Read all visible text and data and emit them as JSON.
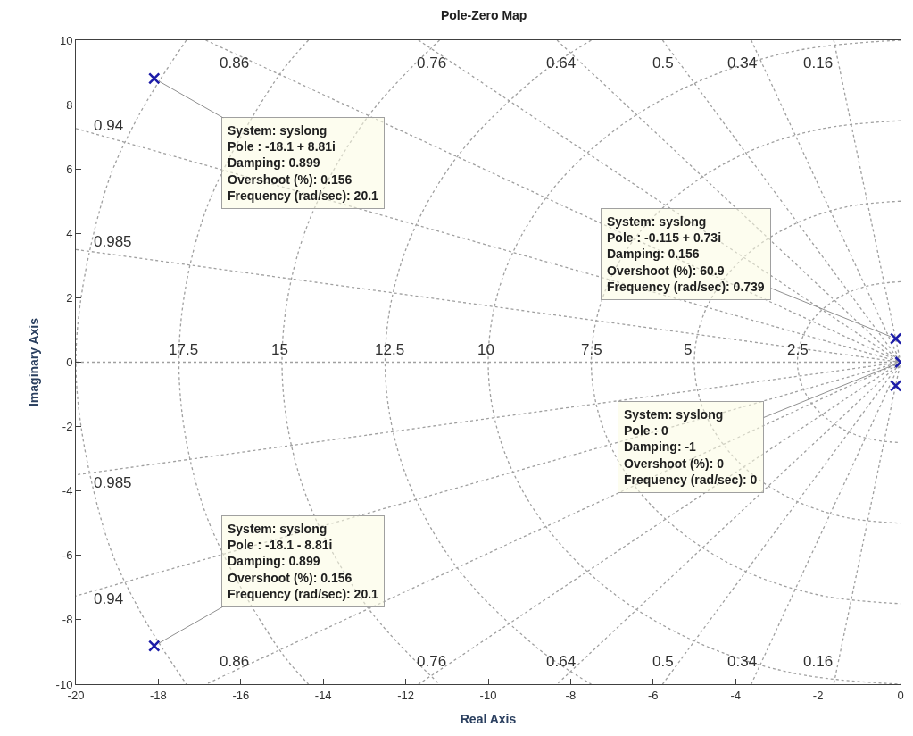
{
  "chart_data": {
    "type": "scatter",
    "title": "Pole-Zero Map",
    "xlabel": "Real Axis",
    "ylabel": "Imaginary Axis",
    "xlim": [
      -20,
      0
    ],
    "xticks": [
      -20,
      -18,
      -16,
      -14,
      -12,
      -10,
      -8,
      -6,
      -4,
      -2,
      0
    ],
    "ylim": [
      -10,
      10
    ],
    "yticks": [
      -10,
      -8,
      -6,
      -4,
      -2,
      0,
      2,
      4,
      6,
      8,
      10
    ],
    "marker": "cross",
    "series": [
      {
        "color": "#1c1ca8",
        "x": [
          -18.1,
          -18.1,
          -0.115,
          -0.115,
          0
        ],
        "values": [
          8.81,
          -8.81,
          0.73,
          -0.73,
          0
        ]
      },
      {
        "type": "line",
        "color": "#a0a0a0",
        "line_style": "dotted",
        "marker": "none",
        "x": [
          -20,
          0
        ],
        "values": [
          0,
          0
        ]
      },
      {
        "type": "line",
        "color": "#a0a0a0",
        "line_style": "dotted",
        "marker": "none",
        "x": [
          -1.62,
          0,
          -1.62
        ],
        "values": [
          10,
          0,
          -10
        ]
      },
      {
        "type": "line",
        "color": "#a0a0a0",
        "line_style": "dotted",
        "marker": "none",
        "x": [
          -3.62,
          0,
          -3.62
        ],
        "values": [
          10,
          0,
          -10
        ]
      },
      {
        "type": "line",
        "color": "#a0a0a0",
        "line_style": "dotted",
        "marker": "none",
        "x": [
          -5.77,
          0,
          -5.77
        ],
        "values": [
          10,
          0,
          -10
        ]
      },
      {
        "type": "line",
        "color": "#a0a0a0",
        "line_style": "dotted",
        "marker": "none",
        "x": [
          -8.33,
          0,
          -8.33
        ],
        "values": [
          10,
          0,
          -10
        ]
      },
      {
        "type": "line",
        "color": "#a0a0a0",
        "line_style": "dotted",
        "marker": "none",
        "x": [
          -11.69,
          0,
          -11.69
        ],
        "values": [
          10,
          0,
          -10
        ]
      },
      {
        "type": "line",
        "color": "#a0a0a0",
        "line_style": "dotted",
        "marker": "none",
        "x": [
          -16.85,
          0,
          -16.85
        ],
        "values": [
          10,
          0,
          -10
        ]
      },
      {
        "type": "line",
        "color": "#a0a0a0",
        "line_style": "dotted",
        "marker": "none",
        "x": [
          -20,
          0,
          -20
        ],
        "values": [
          7.26,
          0,
          -7.26
        ]
      },
      {
        "type": "line",
        "color": "#a0a0a0",
        "line_style": "dotted",
        "marker": "none",
        "x": [
          -20,
          0,
          -20
        ],
        "values": [
          3.5,
          0,
          -3.5
        ]
      },
      {
        "type": "line",
        "color": "#a0a0a0",
        "line_style": "dotted",
        "marker": "none",
        "x": [
          0,
          -0.65,
          -1.25,
          -1.77,
          -2.17,
          -2.41,
          -2.5,
          -2.41,
          -2.17,
          -1.77,
          -1.25,
          -0.65,
          0
        ],
        "values": [
          2.5,
          2.41,
          2.17,
          1.77,
          1.25,
          0.65,
          0,
          -0.65,
          -1.25,
          -1.77,
          -2.17,
          -2.41,
          -2.5
        ]
      },
      {
        "type": "line",
        "color": "#a0a0a0",
        "line_style": "dotted",
        "marker": "none",
        "x": [
          0,
          -1.29,
          -2.5,
          -3.54,
          -4.33,
          -4.83,
          -5,
          -4.83,
          -4.33,
          -3.54,
          -2.5,
          -1.29,
          0
        ],
        "values": [
          5,
          4.83,
          4.33,
          3.54,
          2.5,
          1.29,
          0,
          -1.29,
          -2.5,
          -3.54,
          -4.33,
          -4.83,
          -5
        ]
      },
      {
        "type": "line",
        "color": "#a0a0a0",
        "line_style": "dotted",
        "marker": "none",
        "x": [
          0,
          -1.94,
          -3.75,
          -5.3,
          -6.5,
          -7.24,
          -7.5,
          -7.24,
          -6.5,
          -5.3,
          -3.75,
          -1.94,
          0
        ],
        "values": [
          7.5,
          7.24,
          6.5,
          5.3,
          3.75,
          1.94,
          0,
          -1.94,
          -3.75,
          -5.3,
          -6.5,
          -7.24,
          -7.5
        ]
      },
      {
        "type": "line",
        "color": "#a0a0a0",
        "line_style": "dotted",
        "marker": "none",
        "x": [
          0,
          -2.59,
          -5,
          -7.07,
          -8.66,
          -9.66,
          -10,
          -9.66,
          -8.66,
          -7.07,
          -5,
          -2.59,
          0
        ],
        "values": [
          10,
          9.66,
          8.66,
          7.07,
          5,
          2.59,
          0,
          -2.59,
          -5,
          -7.07,
          -8.66,
          -9.66,
          -10
        ]
      },
      {
        "type": "line",
        "color": "#a0a0a0",
        "line_style": "dotted",
        "marker": "none",
        "x": [
          -7.5,
          -8.84,
          -10.83,
          -12.07,
          -12.5,
          -12.07,
          -10.83,
          -8.84,
          -7.5
        ],
        "values": [
          10,
          8.84,
          6.25,
          3.24,
          0,
          -3.24,
          -6.25,
          -8.84,
          -10
        ]
      },
      {
        "type": "line",
        "color": "#a0a0a0",
        "line_style": "dotted",
        "marker": "none",
        "x": [
          -11.18,
          -12.99,
          -14.49,
          -15,
          -14.49,
          -12.99,
          -11.18
        ],
        "values": [
          10,
          7.5,
          3.88,
          0,
          -3.88,
          -7.5,
          -10
        ]
      },
      {
        "type": "line",
        "color": "#a0a0a0",
        "line_style": "dotted",
        "marker": "none",
        "x": [
          -14.36,
          -15.16,
          -16.9,
          -17.5,
          -16.9,
          -15.16,
          -14.36
        ],
        "values": [
          10,
          8.75,
          4.53,
          0,
          -4.53,
          -8.75,
          -10
        ]
      },
      {
        "type": "line",
        "color": "#a0a0a0",
        "line_style": "dotted",
        "marker": "none",
        "x": [
          -17.32,
          -18.48,
          -19.32,
          -20,
          -19.32,
          -18.48,
          -17.32
        ],
        "values": [
          10,
          7.65,
          5.18,
          0,
          -5.18,
          -7.65,
          -10
        ]
      }
    ],
    "annotations": [
      {
        "text": "System: syslong\nPole : -18.1 + 8.81i\nDamping: 0.899\nOvershoot (%): 0.156\nFrequency (rad/sec): 20.1",
        "x": -18.1,
        "y": 8.81
      },
      {
        "text": "System: syslong\nPole : -0.115 + 0.73i\nDamping: 0.156\nOvershoot (%): 60.9\nFrequency (rad/sec): 0.739",
        "x": -0.115,
        "y": 0.73
      },
      {
        "text": "System: syslong\nPole : 0\nDamping: -1\nOvershoot (%): 0\nFrequency (rad/sec): 0",
        "x": 0,
        "y": 0
      },
      {
        "text": "System: syslong\nPole : -18.1 - 8.81i\nDamping: 0.899\nOvershoot (%): 0.156\nFrequency (rad/sec): 20.1",
        "x": -18.1,
        "y": -8.81
      },
      {
        "text": "0.86",
        "x": -15.67,
        "y": 9.3
      },
      {
        "text": "0.76",
        "x": -10.88,
        "y": 9.3
      },
      {
        "text": "0.64",
        "x": -7.75,
        "y": 9.3
      },
      {
        "text": "0.5",
        "x": -5.37,
        "y": 9.3
      },
      {
        "text": "0.34",
        "x": -3.36,
        "y": 9.3
      },
      {
        "text": "0.16",
        "x": -1.51,
        "y": 9.3
      },
      {
        "text": "0.94",
        "x": -19.2,
        "y": 6.97
      },
      {
        "text": "0.985",
        "x": -19.1,
        "y": 3.35
      },
      {
        "text": "0.86",
        "x": -15.67,
        "y": -9.3
      },
      {
        "text": "0.76",
        "x": -10.88,
        "y": -9.3
      },
      {
        "text": "0.64",
        "x": -7.75,
        "y": -9.3
      },
      {
        "text": "0.5",
        "x": -5.37,
        "y": -9.3
      },
      {
        "text": "0.34",
        "x": -3.36,
        "y": -9.3
      },
      {
        "text": "0.16",
        "x": -1.51,
        "y": -9.3
      },
      {
        "text": "0.94",
        "x": -19.2,
        "y": -6.97
      },
      {
        "text": "0.985",
        "x": -19.1,
        "y": -3.35
      },
      {
        "text": "17.5",
        "x": -17.5,
        "y": 0
      },
      {
        "text": "15",
        "x": -15,
        "y": 0
      },
      {
        "text": "12.5",
        "x": -12.5,
        "y": 0
      },
      {
        "text": "10",
        "x": -10,
        "y": 0
      },
      {
        "text": "7.5",
        "x": -7.5,
        "y": 0
      },
      {
        "text": "5",
        "x": -5,
        "y": 0
      },
      {
        "text": "2.5",
        "x": -2.5,
        "y": 0
      }
    ]
  }
}
